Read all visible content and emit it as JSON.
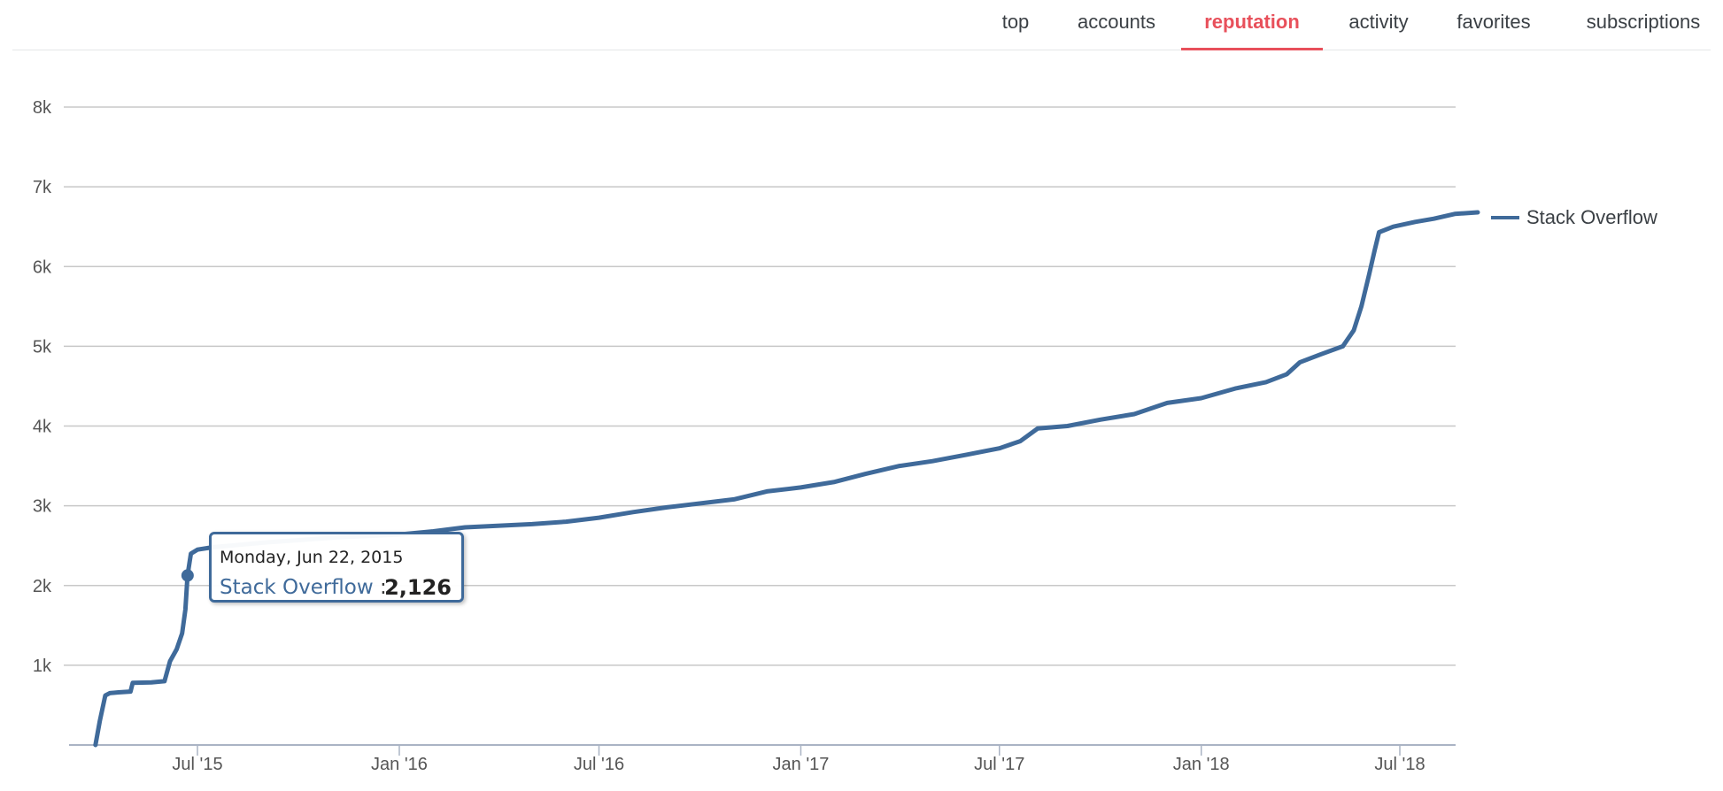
{
  "nav": {
    "tabs": [
      {
        "label": "top",
        "active": false
      },
      {
        "label": "accounts",
        "active": false
      },
      {
        "label": "reputation",
        "active": true
      },
      {
        "label": "activity",
        "active": false
      },
      {
        "label": "favorites",
        "active": false
      },
      {
        "label": "subscriptions",
        "active": false
      }
    ],
    "active_color": "#e8505b"
  },
  "chart_data": {
    "type": "line",
    "title": "",
    "xlabel": "",
    "ylabel": "",
    "ylim": [
      0,
      8000
    ],
    "xlim": [
      "2015-03-26",
      "2018-09-20"
    ],
    "y_ticks": [
      {
        "value": 1000,
        "label": "1k"
      },
      {
        "value": 2000,
        "label": "2k"
      },
      {
        "value": 3000,
        "label": "3k"
      },
      {
        "value": 4000,
        "label": "4k"
      },
      {
        "value": 5000,
        "label": "5k"
      },
      {
        "value": 6000,
        "label": "6k"
      },
      {
        "value": 7000,
        "label": "7k"
      },
      {
        "value": 8000,
        "label": "8k"
      }
    ],
    "x_ticks": [
      {
        "date": "2015-07-01",
        "label": "Jul '15"
      },
      {
        "date": "2016-01-01",
        "label": "Jan '16"
      },
      {
        "date": "2016-07-01",
        "label": "Jul '16"
      },
      {
        "date": "2017-01-01",
        "label": "Jan '17"
      },
      {
        "date": "2017-07-01",
        "label": "Jul '17"
      },
      {
        "date": "2018-01-01",
        "label": "Jan '18"
      },
      {
        "date": "2018-07-01",
        "label": "Jul '18"
      }
    ],
    "grid": true,
    "legend": "right",
    "series": [
      {
        "name": "Stack Overflow",
        "color": "#3f6a9a",
        "points": [
          [
            "2015-03-30",
            0
          ],
          [
            "2015-04-03",
            300
          ],
          [
            "2015-04-08",
            620
          ],
          [
            "2015-04-12",
            650
          ],
          [
            "2015-04-20",
            660
          ],
          [
            "2015-05-01",
            670
          ],
          [
            "2015-05-03",
            780
          ],
          [
            "2015-05-20",
            785
          ],
          [
            "2015-06-01",
            800
          ],
          [
            "2015-06-06",
            1050
          ],
          [
            "2015-06-12",
            1200
          ],
          [
            "2015-06-17",
            1400
          ],
          [
            "2015-06-20",
            1700
          ],
          [
            "2015-06-22",
            2126
          ],
          [
            "2015-06-25",
            2400
          ],
          [
            "2015-07-01",
            2450
          ],
          [
            "2015-07-15",
            2480
          ],
          [
            "2015-09-01",
            2540
          ],
          [
            "2015-11-01",
            2600
          ],
          [
            "2016-01-01",
            2640
          ],
          [
            "2016-02-01",
            2680
          ],
          [
            "2016-03-01",
            2730
          ],
          [
            "2016-05-01",
            2770
          ],
          [
            "2016-06-01",
            2800
          ],
          [
            "2016-07-01",
            2850
          ],
          [
            "2016-08-01",
            2920
          ],
          [
            "2016-09-01",
            2980
          ],
          [
            "2016-11-01",
            3080
          ],
          [
            "2016-12-01",
            3180
          ],
          [
            "2017-01-01",
            3230
          ],
          [
            "2017-02-01",
            3300
          ],
          [
            "2017-03-01",
            3400
          ],
          [
            "2017-04-01",
            3500
          ],
          [
            "2017-05-01",
            3560
          ],
          [
            "2017-06-01",
            3640
          ],
          [
            "2017-07-01",
            3720
          ],
          [
            "2017-07-20",
            3810
          ],
          [
            "2017-08-05",
            3970
          ],
          [
            "2017-09-01",
            4000
          ],
          [
            "2017-10-01",
            4080
          ],
          [
            "2017-11-01",
            4150
          ],
          [
            "2017-12-01",
            4290
          ],
          [
            "2018-01-01",
            4350
          ],
          [
            "2018-02-01",
            4470
          ],
          [
            "2018-03-01",
            4550
          ],
          [
            "2018-03-20",
            4650
          ],
          [
            "2018-04-01",
            4800
          ],
          [
            "2018-04-20",
            4900
          ],
          [
            "2018-05-10",
            5000
          ],
          [
            "2018-05-20",
            5200
          ],
          [
            "2018-05-27",
            5500
          ],
          [
            "2018-06-03",
            5900
          ],
          [
            "2018-06-08",
            6200
          ],
          [
            "2018-06-12",
            6430
          ],
          [
            "2018-06-25",
            6500
          ],
          [
            "2018-07-15",
            6560
          ],
          [
            "2018-08-01",
            6600
          ],
          [
            "2018-08-20",
            6660
          ],
          [
            "2018-09-10",
            6680
          ]
        ]
      }
    ],
    "tooltip": {
      "date": "Monday, Jun 22, 2015",
      "series": "Stack Overflow",
      "value": "2,126",
      "point": [
        "2015-06-22",
        2126
      ]
    }
  }
}
